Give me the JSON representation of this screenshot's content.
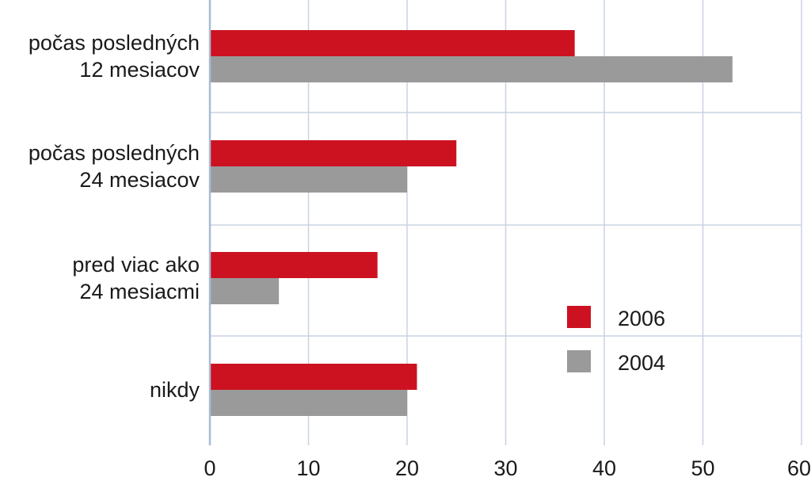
{
  "chart_data": {
    "type": "bar",
    "orientation": "horizontal",
    "categories": [
      [
        "počas posledných",
        "12 mesiacov"
      ],
      [
        "počas posledných",
        "24 mesiacov"
      ],
      [
        "pred viac ako",
        "24 mesiacmi"
      ],
      [
        "nikdy"
      ]
    ],
    "series": [
      {
        "name": "2006",
        "color": "#cc1221",
        "values": [
          37,
          25,
          17,
          21
        ]
      },
      {
        "name": "2004",
        "color": "#9a9a9a",
        "values": [
          53,
          20,
          7,
          20
        ]
      }
    ],
    "xlim": [
      0,
      60
    ],
    "xticks": [
      "0",
      "10",
      "20",
      "30",
      "40",
      "50",
      "60"
    ],
    "grid": true,
    "legend_position": "right",
    "title": "",
    "xlabel": "",
    "ylabel": ""
  }
}
